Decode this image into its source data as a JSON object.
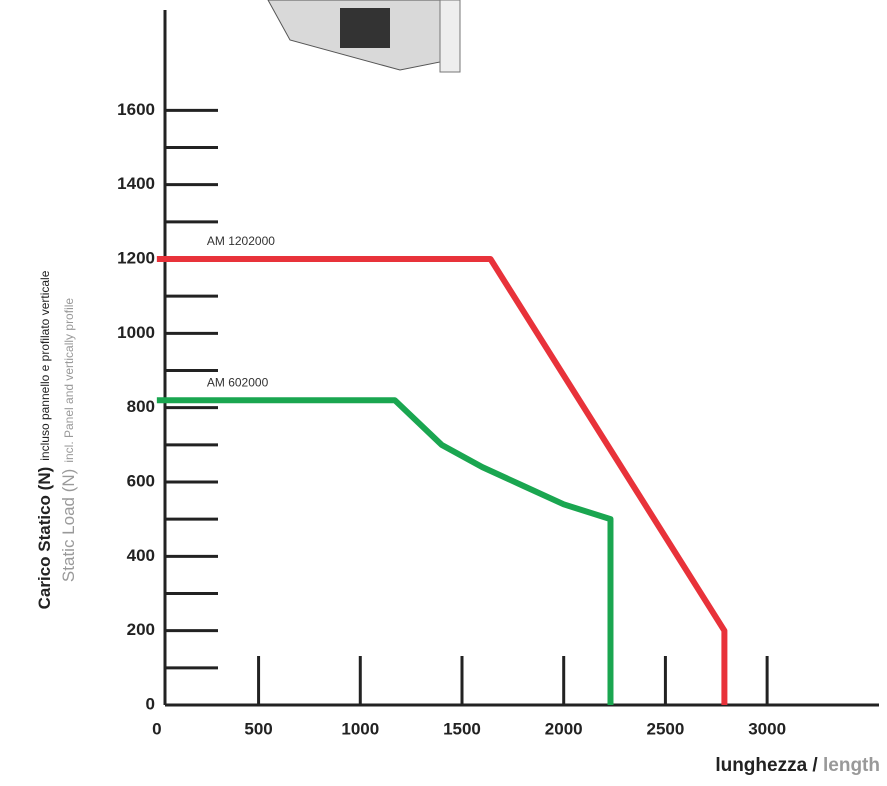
{
  "chart_data": {
    "type": "line",
    "y_title": [
      "Carico Statico (N)",
      "incluso pannello e profilato verticale"
    ],
    "y_title_en": [
      "Static Load (N)",
      "incl. Panel and vertically profile"
    ],
    "x_title": [
      "lunghezza / ",
      "length"
    ],
    "xlim": [
      40,
      3550
    ],
    "xticks": [
      0,
      500,
      1000,
      1500,
      2000,
      2500,
      3000
    ],
    "ylim": [
      0,
      1870
    ],
    "yticks": [
      0,
      200,
      400,
      600,
      800,
      1000,
      1200,
      1400,
      1600
    ],
    "yminorticks": [
      100,
      300,
      500,
      700,
      900,
      1100,
      1300,
      1500
    ],
    "series": [
      {
        "name": "AM 1202000",
        "color": "#e8323a",
        "x": [
          0,
          1640,
          2790,
          2790
        ],
        "values": [
          1200,
          1200,
          200,
          0
        ]
      },
      {
        "name": "AM 602000",
        "color": "#1aa650",
        "x": [
          0,
          1170,
          1400,
          1600,
          1800,
          2000,
          2230,
          2230
        ],
        "values": [
          820,
          820,
          700,
          640,
          590,
          540,
          500,
          0
        ]
      }
    ]
  }
}
